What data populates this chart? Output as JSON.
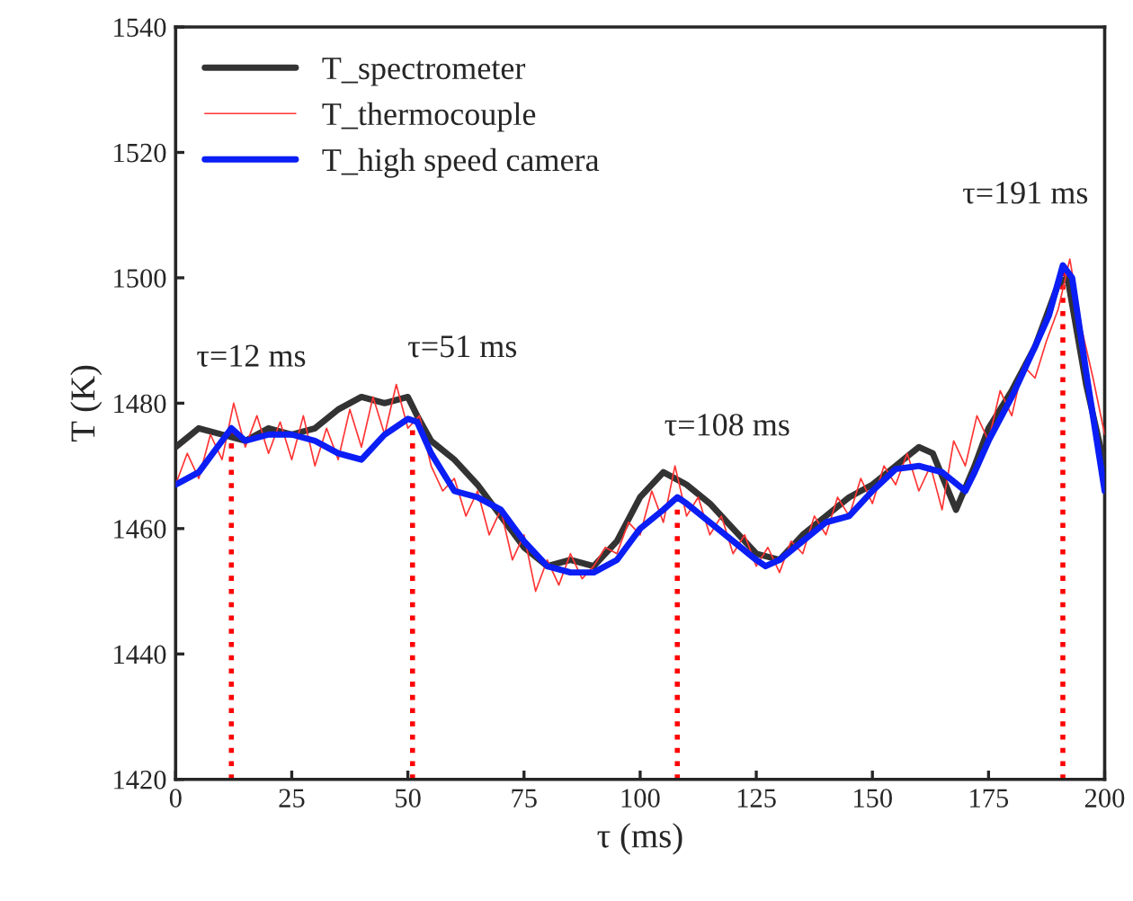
{
  "chart_data": {
    "type": "line",
    "xlabel": "τ (ms)",
    "ylabel": "T (K)",
    "xlim": [
      0,
      200
    ],
    "xticks": [
      0,
      25,
      50,
      75,
      100,
      125,
      150,
      175,
      200
    ],
    "ylim": [
      1420,
      1540
    ],
    "yticks": [
      1420,
      1440,
      1460,
      1480,
      1500,
      1520,
      1540
    ],
    "grid": false,
    "legend": "top left",
    "series": [
      {
        "name": "T_spectrometer",
        "color": "#333333",
        "x": [
          0,
          5,
          10,
          15,
          20,
          25,
          30,
          35,
          40,
          45,
          50,
          52,
          55,
          60,
          65,
          70,
          75,
          80,
          85,
          90,
          95,
          100,
          105,
          110,
          115,
          120,
          125,
          130,
          135,
          140,
          145,
          150,
          155,
          160,
          163,
          168,
          172,
          175,
          180,
          185,
          190,
          192,
          196,
          200
        ],
        "values": [
          1473,
          1476,
          1475,
          1474,
          1476,
          1475,
          1476,
          1479,
          1481,
          1480,
          1481,
          1478,
          1474,
          1471,
          1467,
          1462,
          1457,
          1454,
          1455,
          1454,
          1458,
          1465,
          1469,
          1467,
          1464,
          1460,
          1456,
          1455,
          1459,
          1462,
          1465,
          1467,
          1470,
          1473,
          1472,
          1463,
          1470,
          1476,
          1482,
          1489,
          1499,
          1500,
          1483,
          1470
        ]
      },
      {
        "name": "T_thermocouple",
        "color": "#ff3333",
        "x": [
          0,
          2.5,
          5,
          7.5,
          10,
          12.5,
          15,
          17.5,
          20,
          22.5,
          25,
          27.5,
          30,
          32.5,
          35,
          37.5,
          40,
          42.5,
          45,
          47.5,
          50,
          52.5,
          55,
          57.5,
          60,
          62.5,
          65,
          67.5,
          70,
          72.5,
          75,
          77.5,
          80,
          82.5,
          85,
          87.5,
          90,
          92.5,
          95,
          97.5,
          100,
          102.5,
          105,
          107.5,
          110,
          112.5,
          115,
          117.5,
          120,
          122.5,
          125,
          127.5,
          130,
          132.5,
          135,
          137.5,
          140,
          142.5,
          145,
          147.5,
          150,
          152.5,
          155,
          157.5,
          160,
          162.5,
          165,
          167.5,
          170,
          172.5,
          175,
          177.5,
          180,
          182.5,
          185,
          187.5,
          190,
          192.5,
          195,
          197.5,
          200
        ],
        "values": [
          1467,
          1472,
          1468,
          1475,
          1471,
          1480,
          1473,
          1478,
          1472,
          1477,
          1471,
          1478,
          1470,
          1476,
          1471,
          1479,
          1473,
          1481,
          1475,
          1483,
          1476,
          1478,
          1470,
          1466,
          1468,
          1462,
          1466,
          1459,
          1463,
          1455,
          1459,
          1450,
          1455,
          1451,
          1456,
          1452,
          1454,
          1457,
          1456,
          1461,
          1459,
          1466,
          1461,
          1470,
          1462,
          1465,
          1459,
          1462,
          1456,
          1459,
          1454,
          1457,
          1453,
          1458,
          1456,
          1462,
          1459,
          1465,
          1462,
          1468,
          1464,
          1470,
          1467,
          1472,
          1466,
          1470,
          1463,
          1474,
          1470,
          1478,
          1474,
          1482,
          1478,
          1486,
          1484,
          1490,
          1495,
          1503,
          1492,
          1484,
          1475
        ]
      },
      {
        "name": "T_high speed camera",
        "color": "#0a1ef5",
        "x": [
          0,
          5,
          10,
          12,
          15,
          20,
          25,
          30,
          35,
          40,
          45,
          50,
          52,
          55,
          60,
          65,
          70,
          75,
          80,
          85,
          90,
          95,
          100,
          105,
          108,
          110,
          115,
          120,
          125,
          127,
          130,
          135,
          140,
          145,
          150,
          155,
          160,
          165,
          170,
          172,
          175,
          180,
          185,
          188,
          191,
          193,
          196,
          200
        ],
        "values": [
          1467,
          1469,
          1474,
          1476,
          1474,
          1475,
          1475,
          1474,
          1472,
          1471,
          1475,
          1477.5,
          1477,
          1472,
          1466,
          1465,
          1463,
          1458,
          1454,
          1453,
          1453,
          1455,
          1460,
          1463,
          1465,
          1464,
          1461,
          1458,
          1455,
          1454,
          1455,
          1458,
          1461,
          1462,
          1466,
          1469.5,
          1470,
          1469,
          1466,
          1469,
          1474,
          1481,
          1489,
          1494,
          1502,
          1500,
          1485,
          1466
        ]
      }
    ],
    "ref_lines": [
      {
        "axis": "x",
        "value": 12,
        "color": "#ff0000",
        "line_style": "dotted"
      },
      {
        "axis": "x",
        "value": 51,
        "color": "#ff0000",
        "line_style": "dotted"
      },
      {
        "axis": "x",
        "value": 108,
        "color": "#ff0000",
        "line_style": "dotted"
      },
      {
        "axis": "x",
        "value": 191,
        "color": "#ff0000",
        "line_style": "dotted"
      }
    ],
    "annotations": [
      {
        "text": "τ=12 ms",
        "x": 12,
        "y": 1476
      },
      {
        "text": "τ=51 ms",
        "x": 51,
        "y": 1477.5
      },
      {
        "text": "τ=108 ms",
        "x": 108,
        "y": 1465
      },
      {
        "text": "τ=191 ms",
        "x": 191,
        "y": 1502
      }
    ]
  }
}
